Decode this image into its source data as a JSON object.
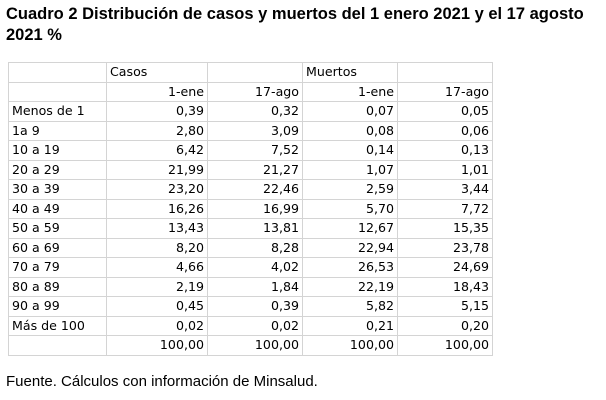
{
  "title": "Cuadro 2 Distribución de casos y muertos del 1 enero 2021 y el 17 agosto 2021 %",
  "table": {
    "group_headers": [
      "",
      "Casos",
      "",
      "Muertos",
      ""
    ],
    "sub_headers": [
      "",
      "1-ene",
      "17-ago",
      "1-ene",
      "17-ago"
    ],
    "rows": [
      {
        "label": "Menos de 1",
        "values": [
          "0,39",
          "0,32",
          "0,07",
          "0,05"
        ]
      },
      {
        "label": "1a 9",
        "values": [
          "2,80",
          "3,09",
          "0,08",
          "0,06"
        ]
      },
      {
        "label": "10 a 19",
        "values": [
          "6,42",
          "7,52",
          "0,14",
          "0,13"
        ]
      },
      {
        "label": "20 a 29",
        "values": [
          "21,99",
          "21,27",
          "1,07",
          "1,01"
        ]
      },
      {
        "label": "30 a 39",
        "values": [
          "23,20",
          "22,46",
          "2,59",
          "3,44"
        ]
      },
      {
        "label": "40 a 49",
        "values": [
          "16,26",
          "16,99",
          "5,70",
          "7,72"
        ]
      },
      {
        "label": "50 a 59",
        "values": [
          "13,43",
          "13,81",
          "12,67",
          "15,35"
        ]
      },
      {
        "label": "60 a 69",
        "values": [
          "8,20",
          "8,28",
          "22,94",
          "23,78"
        ]
      },
      {
        "label": "70 a 79",
        "values": [
          "4,66",
          "4,02",
          "26,53",
          "24,69"
        ]
      },
      {
        "label": "80 a 89",
        "values": [
          "2,19",
          "1,84",
          "22,19",
          "18,43"
        ]
      },
      {
        "label": "90 a 99",
        "values": [
          "0,45",
          "0,39",
          "5,82",
          "5,15"
        ]
      },
      {
        "label": "Más de 100",
        "values": [
          "0,02",
          "0,02",
          "0,21",
          "0,20"
        ]
      },
      {
        "label": "",
        "values": [
          "100,00",
          "100,00",
          "100,00",
          "100,00"
        ]
      }
    ]
  },
  "source": "Fuente. Cálculos con información de Minsalud."
}
